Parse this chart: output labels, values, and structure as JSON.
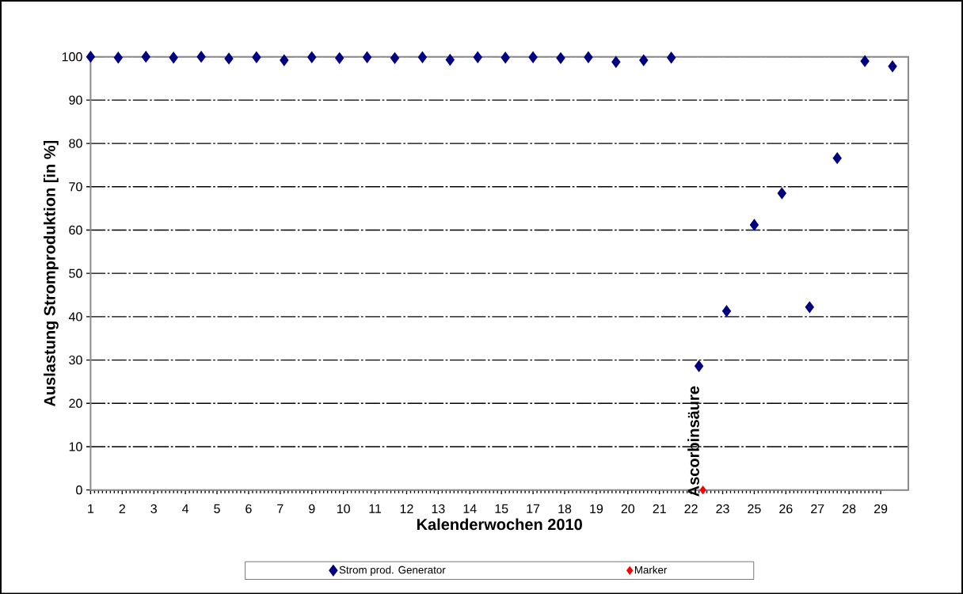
{
  "chart_data": {
    "type": "scatter",
    "xlabel": "Kalenderwochen 2010",
    "ylabel": "Auslastung Stromproduktion [in %]",
    "x": [
      "2010-01-04",
      "2010-01-11",
      "2010-01-18",
      "2010-01-25",
      "2010-02-01",
      "2010-02-08",
      "2010-02-15",
      "2010-02-22",
      "2010-03-01",
      "2010-03-08",
      "2010-03-15",
      "2010-03-22",
      "2010-03-29",
      "2010-04-05",
      "2010-04-12",
      "2010-04-19",
      "2010-04-26",
      "2010-05-03",
      "2010-05-10",
      "2010-05-17",
      "2010-05-24",
      "2010-05-31",
      "2010-06-07",
      "2010-06-14",
      "2010-06-21",
      "2010-06-28",
      "2010-07-05",
      "2010-07-12",
      "2010-07-19",
      "2010-07-26"
    ],
    "series": [
      {
        "name": "Strom prod. Generator",
        "color": "#000080",
        "values": [
          100,
          99.8,
          100,
          99.8,
          100,
          99.6,
          99.9,
          99.2,
          99.9,
          99.7,
          99.9,
          99.7,
          99.9,
          99.3,
          99.9,
          99.8,
          99.9,
          99.7,
          99.9,
          98.8,
          99.2,
          99.8,
          28.6,
          41.3,
          61.2,
          68.5,
          42.2,
          76.6,
          99,
          97.8
        ]
      },
      {
        "name": "Marker",
        "color": "#ff0000",
        "x": [
          "2010-06-08"
        ],
        "values": [
          0
        ]
      }
    ],
    "xlim": [
      "2010-01-04",
      "2010-07-30"
    ],
    "xticks": [
      {
        "value": "2010-01-04",
        "label": "1"
      },
      {
        "value": "2010-01-12",
        "label": "2"
      },
      {
        "value": "2010-01-20",
        "label": "3"
      },
      {
        "value": "2010-01-28",
        "label": "4"
      },
      {
        "value": "2010-02-05",
        "label": "5"
      },
      {
        "value": "2010-02-13",
        "label": "6"
      },
      {
        "value": "2010-02-21",
        "label": "7"
      },
      {
        "value": "2010-03-01",
        "label": "9"
      },
      {
        "value": "2010-03-09",
        "label": "10"
      },
      {
        "value": "2010-03-17",
        "label": "11"
      },
      {
        "value": "2010-03-25",
        "label": "12"
      },
      {
        "value": "2010-04-02",
        "label": "13"
      },
      {
        "value": "2010-04-10",
        "label": "14"
      },
      {
        "value": "2010-04-18",
        "label": "15"
      },
      {
        "value": "2010-04-26",
        "label": "17"
      },
      {
        "value": "2010-05-04",
        "label": "18"
      },
      {
        "value": "2010-05-12",
        "label": "19"
      },
      {
        "value": "2010-05-20",
        "label": "20"
      },
      {
        "value": "2010-05-28",
        "label": "21"
      },
      {
        "value": "2010-06-05",
        "label": "22"
      },
      {
        "value": "2010-06-13",
        "label": "23"
      },
      {
        "value": "2010-06-21",
        "label": "25"
      },
      {
        "value": "2010-06-29",
        "label": "26"
      },
      {
        "value": "2010-07-07",
        "label": "27"
      },
      {
        "value": "2010-07-15",
        "label": "28"
      },
      {
        "value": "2010-07-23",
        "label": "29"
      }
    ],
    "ylim": [
      0,
      100
    ],
    "yticks": [
      0,
      10,
      20,
      30,
      40,
      50,
      60,
      70,
      80,
      90,
      100
    ],
    "grid": "y",
    "marker": "diamond",
    "legend": "bottom",
    "annotations": [
      {
        "text": "Ascorbinsäure",
        "x": "2010-06-08",
        "y": 0
      }
    ]
  }
}
